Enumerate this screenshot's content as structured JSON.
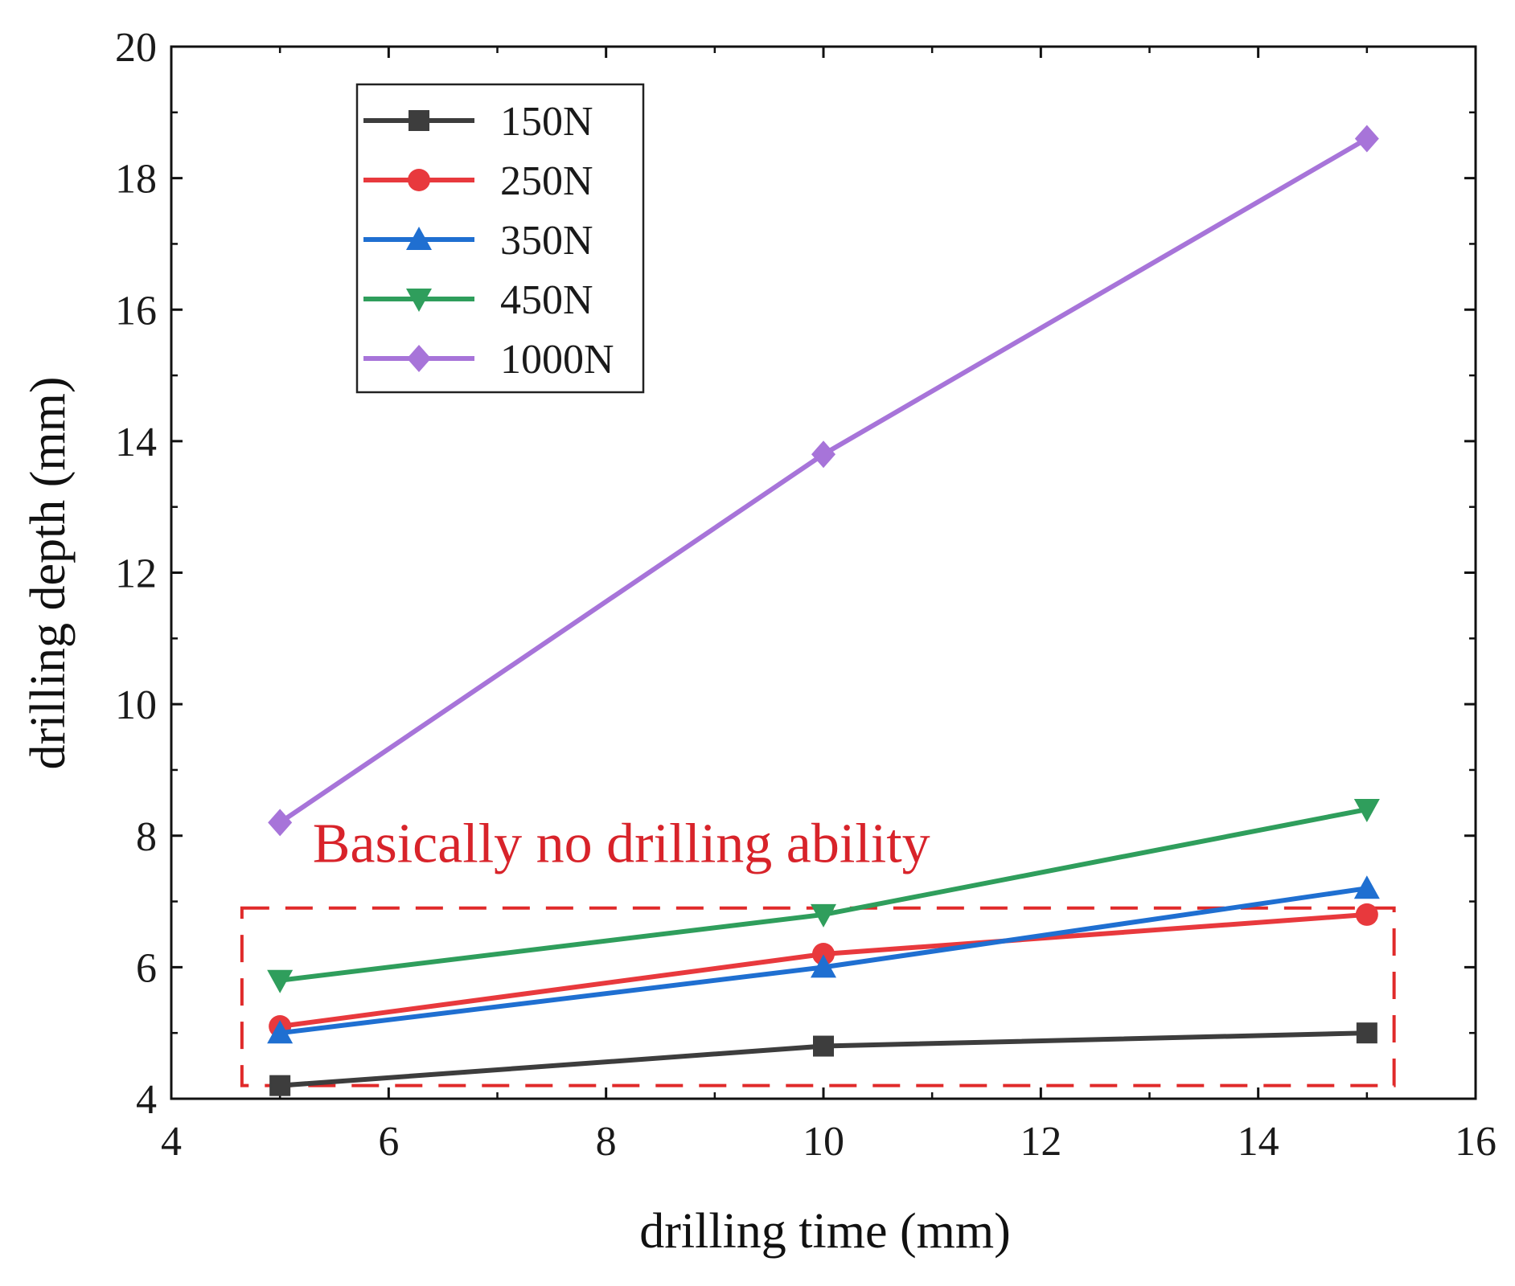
{
  "chart_data": {
    "type": "line",
    "title": "",
    "xlabel": "drilling time (mm)",
    "ylabel": "drilling depth (mm)",
    "xlim": [
      4,
      16
    ],
    "ylim": [
      4,
      20
    ],
    "x_ticks": [
      4,
      6,
      8,
      10,
      12,
      14,
      16
    ],
    "y_ticks": [
      4,
      6,
      8,
      10,
      12,
      14,
      16,
      18,
      20
    ],
    "x_tick_labels": [
      "4",
      "6",
      "8",
      "10",
      "12",
      "14",
      "16"
    ],
    "y_tick_labels": [
      "4",
      "6",
      "8",
      "10",
      "12",
      "14",
      "16",
      "18",
      "20"
    ],
    "grid": false,
    "legend_position": "top-left",
    "x": [
      5,
      10,
      15
    ],
    "series": [
      {
        "name": "150N",
        "values": [
          4.2,
          4.8,
          5.0
        ],
        "color": "#3d3d3d",
        "marker": "square"
      },
      {
        "name": "250N",
        "values": [
          5.1,
          6.2,
          6.8
        ],
        "color": "#e8393d",
        "marker": "circle"
      },
      {
        "name": "350N",
        "values": [
          5.0,
          6.0,
          7.2
        ],
        "color": "#1f6fd1",
        "marker": "triangle-up"
      },
      {
        "name": "450N",
        "values": [
          5.8,
          6.8,
          8.4
        ],
        "color": "#2f9e5c",
        "marker": "triangle-down"
      },
      {
        "name": "1000N",
        "values": [
          8.2,
          13.8,
          18.6
        ],
        "color": "#a774d9",
        "marker": "diamond"
      }
    ],
    "annotations": [
      {
        "text": "Basically no drilling ability",
        "color": "#d8232a",
        "anchor": {
          "x": 5.3,
          "y": 7.6
        }
      }
    ],
    "highlight_box": {
      "x_range": [
        4.65,
        15.25
      ],
      "y_range": [
        4.2,
        6.9
      ],
      "color": "#e02a2a",
      "style": "dashed"
    }
  }
}
